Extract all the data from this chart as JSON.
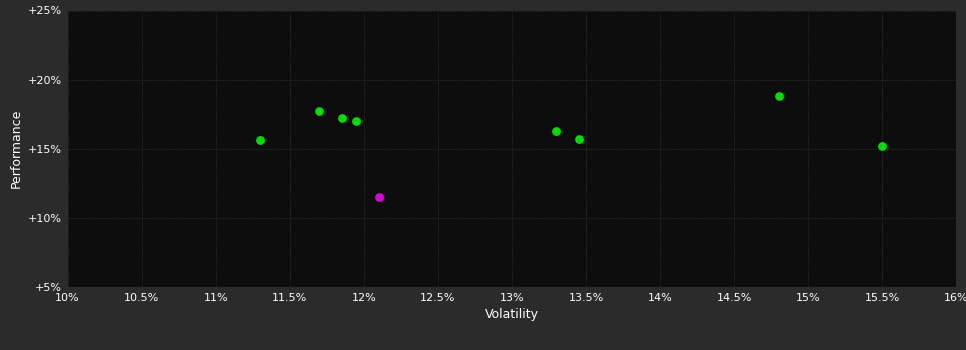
{
  "background_color": "#2b2b2b",
  "plot_bg_color": "#0d0d0d",
  "grid_color": "#404040",
  "text_color": "#ffffff",
  "xlabel": "Volatility",
  "ylabel": "Performance",
  "x_ticks": [
    0.1,
    0.105,
    0.11,
    0.115,
    0.12,
    0.125,
    0.13,
    0.135,
    0.14,
    0.145,
    0.15,
    0.155,
    0.16
  ],
  "x_tick_labels": [
    "10%",
    "10.5%",
    "11%",
    "11.5%",
    "12%",
    "12.5%",
    "13%",
    "13.5%",
    "14%",
    "14.5%",
    "15%",
    "15.5%",
    "16%"
  ],
  "y_ticks": [
    0.05,
    0.1,
    0.15,
    0.2,
    0.25
  ],
  "y_tick_labels": [
    "+5%",
    "+10%",
    "+15%",
    "+20%",
    "+25%"
  ],
  "xlim": [
    0.1,
    0.16
  ],
  "ylim": [
    0.05,
    0.25
  ],
  "green_points": [
    [
      0.113,
      0.156
    ],
    [
      0.117,
      0.177
    ],
    [
      0.1185,
      0.172
    ],
    [
      0.1195,
      0.17
    ],
    [
      0.133,
      0.163
    ],
    [
      0.1345,
      0.157
    ],
    [
      0.148,
      0.188
    ],
    [
      0.155,
      0.152
    ]
  ],
  "magenta_points": [
    [
      0.121,
      0.115
    ]
  ],
  "green_color": "#00dd00",
  "magenta_color": "#dd00dd",
  "marker_size": 28
}
